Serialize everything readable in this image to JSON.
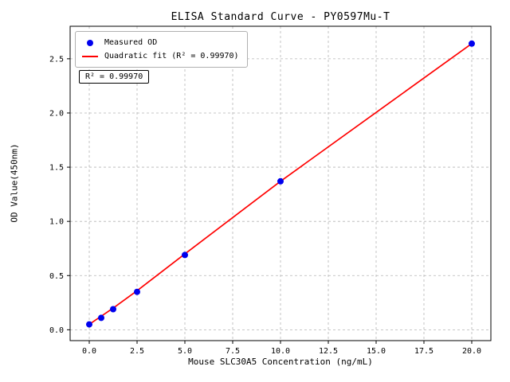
{
  "chart_data": {
    "type": "scatter",
    "title": "ELISA Standard Curve - PY0597Mu-T",
    "xlabel": "Mouse SLC30A5 Concentration (ng/mL)",
    "ylabel": "OD Value(450nm)",
    "xlim": [
      -1,
      21
    ],
    "ylim": [
      -0.1,
      2.8
    ],
    "xticks": [
      0.0,
      2.5,
      5.0,
      7.5,
      10.0,
      12.5,
      15.0,
      17.5,
      20.0
    ],
    "xtick_labels": [
      "0.0",
      "2.5",
      "5.0",
      "7.5",
      "10.0",
      "12.5",
      "15.0",
      "17.5",
      "20.0"
    ],
    "yticks": [
      0.0,
      0.5,
      1.0,
      1.5,
      2.0,
      2.5
    ],
    "ytick_labels": [
      "0.0",
      "0.5",
      "1.0",
      "1.5",
      "2.0",
      "2.5"
    ],
    "grid": true,
    "legend_position": "upper left",
    "annotation": "R² = 0.99970",
    "series": [
      {
        "name": "Measured OD",
        "type": "scatter",
        "color": "#0000ee",
        "x": [
          0,
          0.625,
          1.25,
          2.5,
          5,
          10,
          20
        ],
        "y": [
          0.05,
          0.11,
          0.19,
          0.35,
          0.69,
          1.37,
          2.64
        ]
      },
      {
        "name": "Quadratic fit (R² = 0.99970)",
        "type": "line",
        "color": "#ff0000",
        "x": [
          0,
          0.625,
          1.25,
          2.5,
          5,
          10,
          20
        ],
        "y": [
          0.05,
          0.125,
          0.2,
          0.36,
          0.7,
          1.37,
          2.64
        ]
      }
    ]
  }
}
